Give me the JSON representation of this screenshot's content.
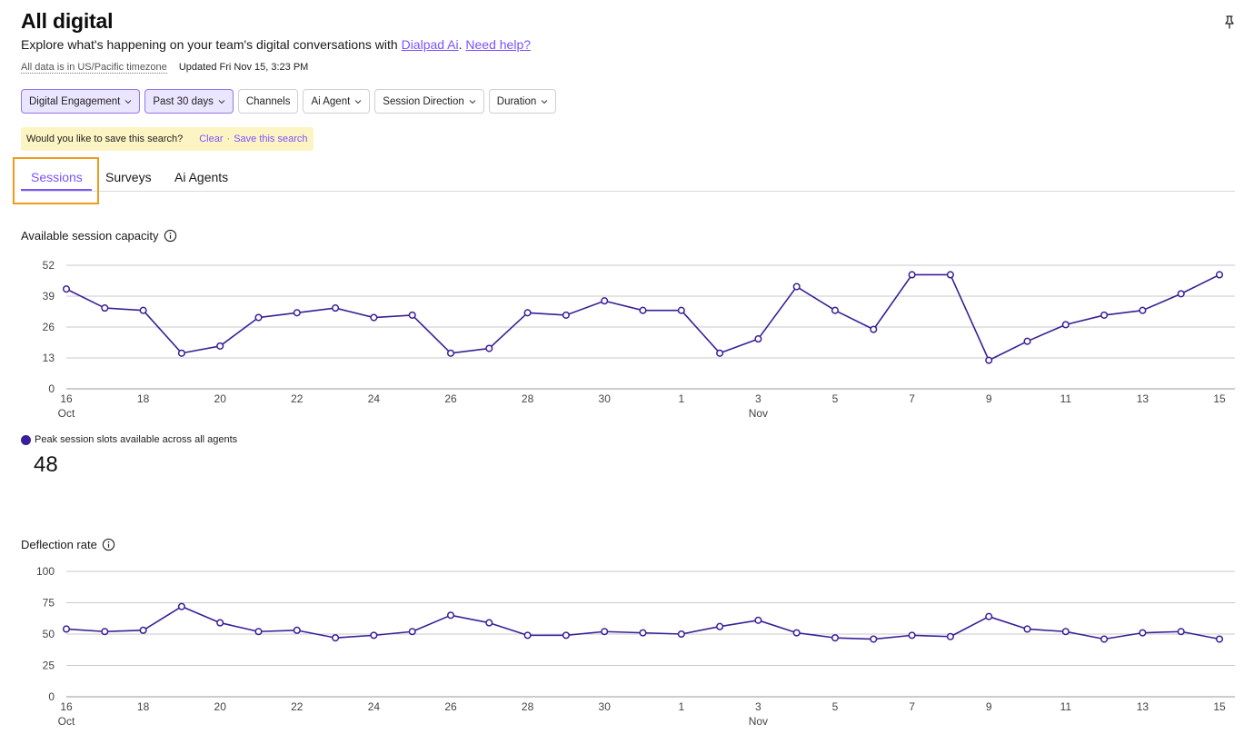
{
  "header": {
    "title": "All digital",
    "subtitle_prefix": "Explore what's happening on your team's digital conversations with ",
    "subtitle_link": "Dialpad Ai",
    "subtitle_sep": ". ",
    "help_link": "Need help?",
    "timezone_note": "All data is in US/Pacific timezone",
    "updated": "Updated Fri Nov 15, 3:23 PM"
  },
  "filters": [
    {
      "label": "Digital Engagement",
      "active": true,
      "dropdown": true
    },
    {
      "label": "Past 30 days",
      "active": true,
      "dropdown": true
    },
    {
      "label": "Channels",
      "active": false,
      "dropdown": false
    },
    {
      "label": "Ai Agent",
      "active": false,
      "dropdown": true
    },
    {
      "label": "Session Direction",
      "active": false,
      "dropdown": true
    },
    {
      "label": "Duration",
      "active": false,
      "dropdown": true
    }
  ],
  "save_search": {
    "prompt": "Would you like to save this search?",
    "clear": "Clear",
    "separator": "·",
    "save": "Save this search"
  },
  "tabs": [
    {
      "label": "Sessions",
      "active": true
    },
    {
      "label": "Surveys",
      "active": false
    },
    {
      "label": "Ai Agents",
      "active": false
    }
  ],
  "colors": {
    "accent": "#7c52ff",
    "series": "#3a1f96",
    "highlight": "#f29b1a",
    "save_bar": "#fdf4c4",
    "chip_active": "#ebe6ff"
  },
  "capacity": {
    "title": "Available session capacity",
    "legend": "Peak session slots available across all agents",
    "summary_value": "48"
  },
  "deflection": {
    "title": "Deflection rate"
  },
  "chart_data": [
    {
      "type": "line",
      "title": "Available session capacity",
      "x": [
        "Oct 16",
        "Oct 17",
        "Oct 18",
        "Oct 19",
        "Oct 20",
        "Oct 21",
        "Oct 22",
        "Oct 23",
        "Oct 24",
        "Oct 25",
        "Oct 26",
        "Oct 27",
        "Oct 28",
        "Oct 29",
        "Oct 30",
        "Oct 31",
        "Nov 1",
        "Nov 2",
        "Nov 3",
        "Nov 4",
        "Nov 5",
        "Nov 6",
        "Nov 7",
        "Nov 8",
        "Nov 9",
        "Nov 10",
        "Nov 11",
        "Nov 12",
        "Nov 13",
        "Nov 14",
        "Nov 15"
      ],
      "x_tick_labels": [
        "16",
        "18",
        "20",
        "22",
        "24",
        "26",
        "28",
        "30",
        "1",
        "3",
        "5",
        "7",
        "9",
        "11",
        "13",
        "15"
      ],
      "month_labels": [
        {
          "label": "Oct",
          "at": "16"
        },
        {
          "label": "Nov",
          "at": "3"
        }
      ],
      "series": [
        {
          "name": "Peak session slots available across all agents",
          "values": [
            42,
            34,
            33,
            15,
            18,
            30,
            32,
            34,
            30,
            31,
            15,
            17,
            32,
            31,
            37,
            33,
            33,
            15,
            21,
            43,
            33,
            25,
            48,
            48,
            12,
            20,
            27,
            31,
            33,
            40,
            48
          ]
        }
      ],
      "ylim": [
        0,
        52
      ],
      "yticks": [
        0,
        13,
        26,
        39,
        52
      ],
      "grid": true
    },
    {
      "type": "line",
      "title": "Deflection rate",
      "x": [
        "Oct 16",
        "Oct 17",
        "Oct 18",
        "Oct 19",
        "Oct 20",
        "Oct 21",
        "Oct 22",
        "Oct 23",
        "Oct 24",
        "Oct 25",
        "Oct 26",
        "Oct 27",
        "Oct 28",
        "Oct 29",
        "Oct 30",
        "Oct 31",
        "Nov 1",
        "Nov 2",
        "Nov 3",
        "Nov 4",
        "Nov 5",
        "Nov 6",
        "Nov 7",
        "Nov 8",
        "Nov 9",
        "Nov 10",
        "Nov 11",
        "Nov 12",
        "Nov 13",
        "Nov 14",
        "Nov 15"
      ],
      "x_tick_labels": [
        "16",
        "18",
        "20",
        "22",
        "24",
        "26",
        "28",
        "30",
        "1",
        "3",
        "5",
        "7",
        "9",
        "11",
        "13",
        "15"
      ],
      "month_labels": [
        {
          "label": "Oct",
          "at": "16"
        },
        {
          "label": "Nov",
          "at": "3"
        }
      ],
      "series": [
        {
          "values": [
            54,
            52,
            53,
            72,
            59,
            52,
            53,
            47,
            49,
            52,
            65,
            59,
            49,
            49,
            52,
            51,
            50,
            56,
            61,
            51,
            47,
            46,
            49,
            48,
            64,
            54,
            52,
            46,
            51,
            52,
            46
          ]
        }
      ],
      "ylim": [
        0,
        100
      ],
      "yticks": [
        0,
        25,
        50,
        75,
        100
      ],
      "grid": true
    }
  ]
}
